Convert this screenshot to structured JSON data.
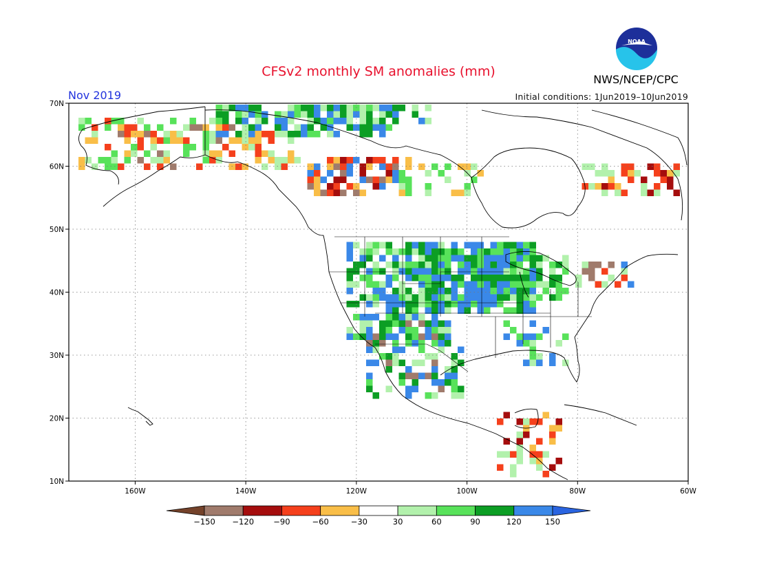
{
  "title": "CFSv2 monthly SM anomalies (mm)",
  "valid_month": "Nov 2019",
  "initial_conditions": "Initial conditions: 1Jun2019–10Jun2019",
  "agency": "NWS/NCEP/CPC",
  "logo_text": "NOAA",
  "map": {
    "lon_range": [
      -172,
      -60
    ],
    "lat_range": [
      10,
      70
    ],
    "lon_ticks": [
      {
        "value": -160,
        "label": "160W"
      },
      {
        "value": -140,
        "label": "140W"
      },
      {
        "value": -120,
        "label": "120W"
      },
      {
        "value": -100,
        "label": "100W"
      },
      {
        "value": -80,
        "label": "80W"
      },
      {
        "value": -60,
        "label": "60W"
      }
    ],
    "lat_ticks": [
      {
        "value": 10,
        "label": "10N"
      },
      {
        "value": 20,
        "label": "20N"
      },
      {
        "value": 30,
        "label": "30N"
      },
      {
        "value": 40,
        "label": "40N"
      },
      {
        "value": 50,
        "label": "50N"
      },
      {
        "value": 60,
        "label": "60N"
      },
      {
        "value": 70,
        "label": "70N"
      }
    ],
    "grid": "dotted"
  },
  "colorbar": {
    "labels": [
      "−150",
      "−120",
      "−90",
      "−60",
      "−30",
      "30",
      "60",
      "90",
      "120",
      "150"
    ],
    "colors": [
      "#74422a",
      "#a07b6c",
      "#a50d0d",
      "#f5401c",
      "#f9be48",
      "#ffffff",
      "#b2f1ac",
      "#58e25a",
      "#0c9e24",
      "#3a88e8",
      "#2a64e0"
    ]
  }
}
